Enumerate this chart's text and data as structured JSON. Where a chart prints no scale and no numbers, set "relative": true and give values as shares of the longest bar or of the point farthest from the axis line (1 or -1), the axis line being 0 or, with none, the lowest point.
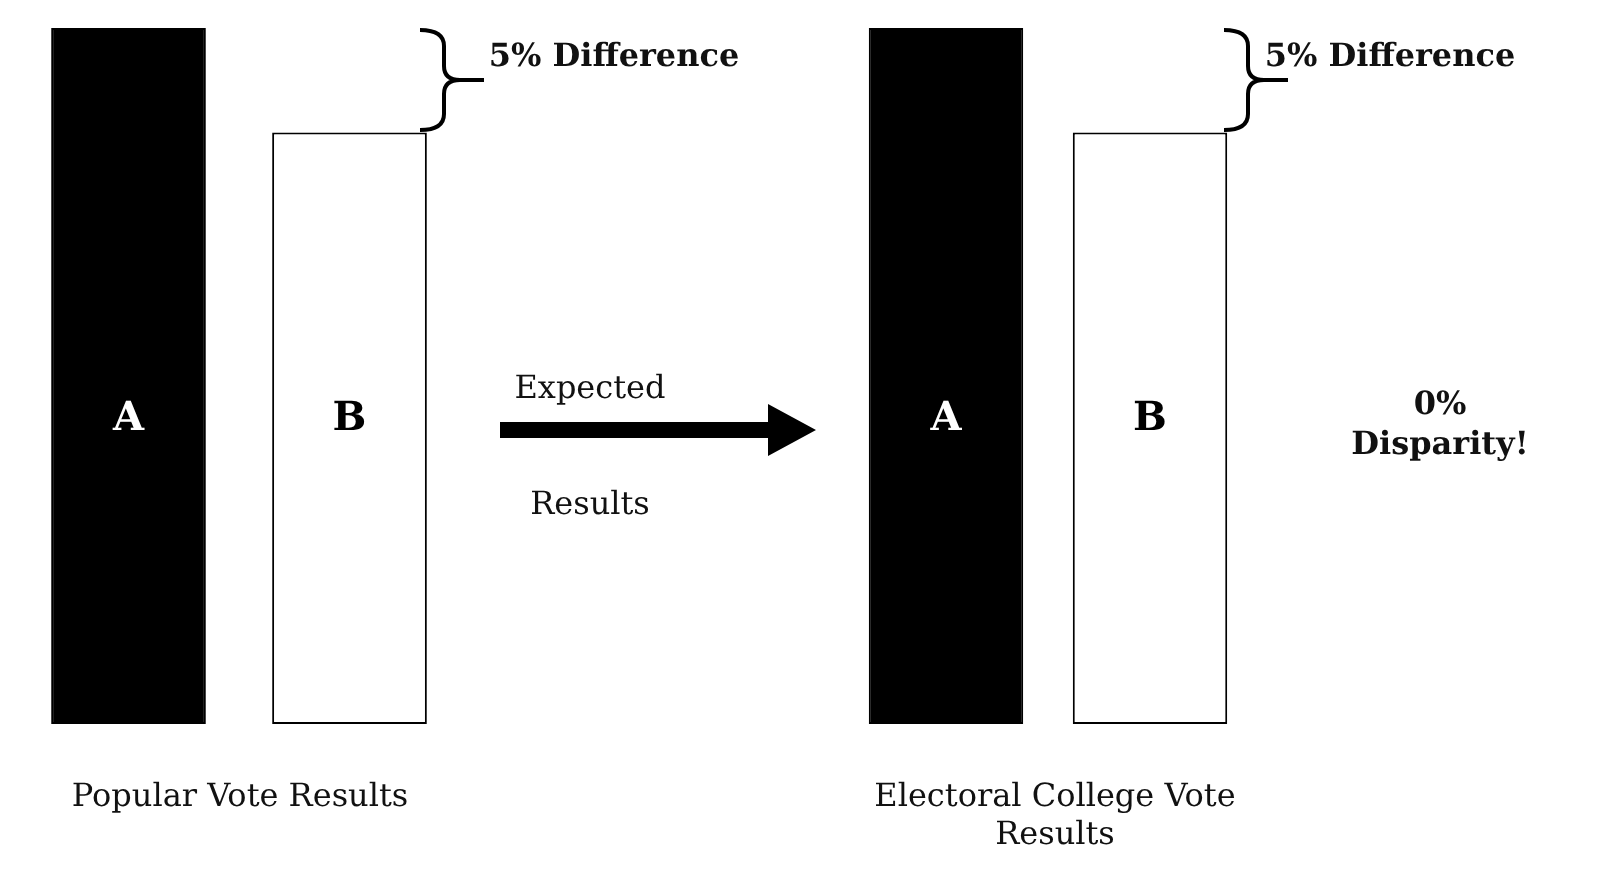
{
  "chart_data": [
    {
      "type": "bar",
      "relative": true,
      "categories": [
        "A",
        "B"
      ],
      "colors": [
        "#000000",
        "#ffffff"
      ],
      "values": [
        1,
        0.85
      ],
      "xlabel": "Popular Vote Results",
      "annotations": [
        "5% Difference",
        "Expected Results"
      ]
    },
    {
      "type": "bar",
      "relative": true,
      "categories": [
        "A",
        "B"
      ],
      "colors": [
        "#000000",
        "#ffffff"
      ],
      "values": [
        1,
        0.85
      ],
      "xlabel": "Electoral College Vote Results",
      "annotations": [
        "5% Difference",
        "0% Disparity!"
      ]
    }
  ]
}
